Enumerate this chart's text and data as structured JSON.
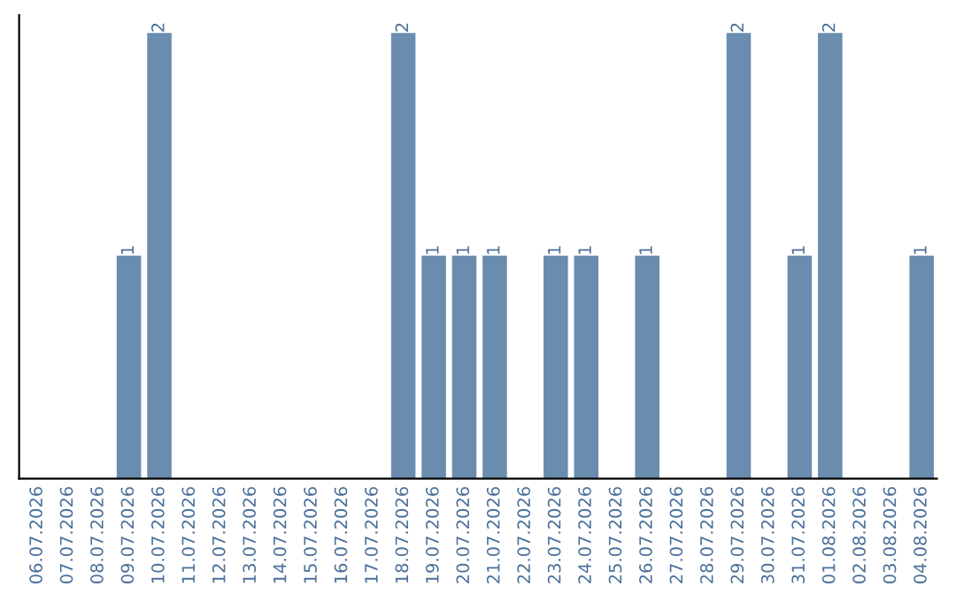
{
  "chart_data": {
    "type": "bar",
    "categories": [
      "06.07.2026",
      "07.07.2026",
      "08.07.2026",
      "09.07.2026",
      "10.07.2026",
      "11.07.2026",
      "12.07.2026",
      "13.07.2026",
      "14.07.2026",
      "15.07.2026",
      "16.07.2026",
      "17.07.2026",
      "18.07.2026",
      "19.07.2026",
      "20.07.2026",
      "21.07.2026",
      "22.07.2026",
      "23.07.2026",
      "24.07.2026",
      "25.07.2026",
      "26.07.2026",
      "27.07.2026",
      "28.07.2026",
      "29.07.2026",
      "30.07.2026",
      "31.07.2026",
      "01.08.2026",
      "02.08.2026",
      "03.08.2026",
      "04.08.2026"
    ],
    "values": [
      0,
      0,
      0,
      1,
      2,
      0,
      0,
      0,
      0,
      0,
      0,
      0,
      2,
      1,
      1,
      1,
      0,
      1,
      1,
      0,
      1,
      0,
      0,
      2,
      0,
      1,
      2,
      0,
      0,
      1
    ],
    "value_labels": [
      null,
      null,
      null,
      "1",
      "2",
      null,
      null,
      null,
      null,
      null,
      null,
      null,
      "2",
      "1",
      "1",
      "1",
      null,
      "1",
      "1",
      null,
      "1",
      null,
      null,
      "2",
      null,
      "1",
      "2",
      null,
      null,
      "1"
    ],
    "color": "#6a8caf",
    "grid": false,
    "legend": false
  }
}
